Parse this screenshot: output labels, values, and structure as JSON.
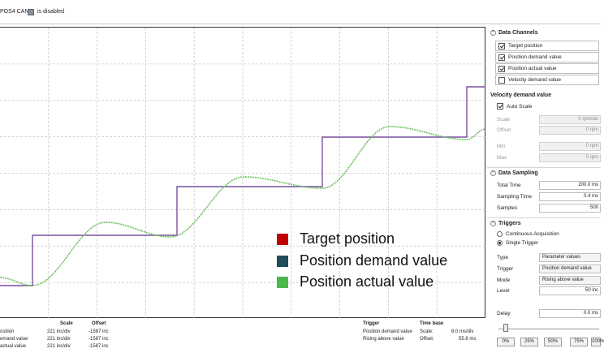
{
  "header": {
    "device": "POS4 CAN",
    "status": "is disabled"
  },
  "legend": [
    {
      "label": "Target position",
      "color": "#c00000"
    },
    {
      "label": "Position demand value",
      "color": "#1f4e5a"
    },
    {
      "label": "Position actual value",
      "color": "#4cb84c"
    }
  ],
  "chart_data": {
    "type": "line",
    "series": [
      {
        "name": "Target position",
        "color": "#7a4fa0",
        "shape": "step"
      },
      {
        "name": "Position actual value",
        "color": "#6dbf5f",
        "shape": "s-curve"
      }
    ]
  },
  "channels_table": {
    "headers": {
      "scale": "Scale",
      "offset": "Offset"
    },
    "rows": [
      {
        "name": "osition",
        "scale": "221 inc/div",
        "offset": "-1587 inc"
      },
      {
        "name": "emand value",
        "scale": "221 inc/div",
        "offset": "-1587 inc"
      },
      {
        "name": "actual value",
        "scale": "221 inc/div",
        "offset": "-1587 inc"
      }
    ]
  },
  "trigger_info": {
    "trigger_head": "Trigger",
    "trigger_lines": [
      "Position demand value",
      "Rising above value"
    ],
    "timebase_head": "Time base",
    "scale_label": "Scale:",
    "scale_value": "8.0 ms/div",
    "offset_label": "Offset:",
    "offset_value": "55.6 ms"
  },
  "data_channels": {
    "title": "Data Channels",
    "items": [
      {
        "label": "Target position",
        "checked": true
      },
      {
        "label": "Position demand value",
        "checked": true
      },
      {
        "label": "Position actual value",
        "checked": true
      },
      {
        "label": "Velocity demand value",
        "checked": false
      }
    ],
    "selected_title": "Velocity demand value",
    "auto_scale": "Auto Scale",
    "scale_label": "Scale",
    "scale_value": "0 rpm/div",
    "offset_label": "Offset",
    "offset_value": "0 rpm",
    "min_label": "Min",
    "min_value": "0 rpm",
    "max_label": "Max",
    "max_value": "0 rpm"
  },
  "data_sampling": {
    "title": "Data Sampling",
    "total_label": "Total Time",
    "total_value": "200.0 ms",
    "sampling_label": "Sampling Time",
    "sampling_value": "0.4 ms",
    "samples_label": "Samples",
    "samples_value": "500"
  },
  "triggers": {
    "title": "Triggers",
    "continuous": "Continuous Acquisition",
    "single": "Single Trigger",
    "type_label": "Type",
    "type_value": "Parameter values",
    "trigger_label": "Trigger",
    "trigger_value": "Position demand value",
    "mode_label": "Mode",
    "mode_value": "Rising above value",
    "level_label": "Level",
    "level_value": "50 inc",
    "delay_label": "Delay",
    "delay_value": "0.0 ms",
    "presets": [
      "0%",
      "25%",
      "50%",
      "75%",
      "100%"
    ]
  }
}
